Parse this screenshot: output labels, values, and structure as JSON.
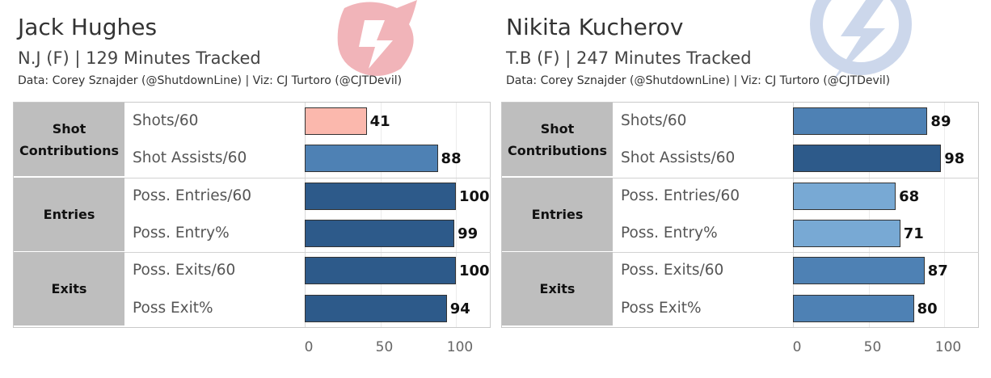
{
  "chart_data": [
    {
      "type": "bar",
      "title": "Jack Hughes",
      "subtitle": "N.J (F) | 129 Minutes Tracked",
      "credit": "Data: Corey Sznajder (@ShutdownLine) | Viz: CJ Turtoro (@CJTDevil)",
      "logo": "devils-logo",
      "groups": [
        {
          "label_lines": [
            "Shot",
            "Contributions"
          ],
          "metrics": [
            {
              "name": "Shots/60",
              "value": 41,
              "color": "#fbb8ad"
            },
            {
              "name": "Shot Assists/60",
              "value": 88,
              "color": "#4e81b4"
            }
          ]
        },
        {
          "label_lines": [
            "Entries"
          ],
          "metrics": [
            {
              "name": "Poss. Entries/60",
              "value": 100,
              "color": "#2d5a8a"
            },
            {
              "name": "Poss. Entry%",
              "value": 99,
              "color": "#2d5a8a"
            }
          ]
        },
        {
          "label_lines": [
            "Exits"
          ],
          "metrics": [
            {
              "name": "Poss. Exits/60",
              "value": 100,
              "color": "#2d5a8a"
            },
            {
              "name": "Poss Exit%",
              "value": 94,
              "color": "#2d5a8a"
            }
          ]
        }
      ],
      "xlim": [
        0,
        100
      ],
      "xticks": [
        "0",
        "50",
        "100"
      ]
    },
    {
      "type": "bar",
      "title": "Nikita Kucherov",
      "subtitle": "T.B (F) | 247 Minutes Tracked",
      "credit": "Data: Corey Sznajder (@ShutdownLine) | Viz: CJ Turtoro (@CJTDevil)",
      "logo": "lightning-logo",
      "groups": [
        {
          "label_lines": [
            "Shot",
            "Contributions"
          ],
          "metrics": [
            {
              "name": "Shots/60",
              "value": 89,
              "color": "#4e81b4"
            },
            {
              "name": "Shot Assists/60",
              "value": 98,
              "color": "#2d5a8a"
            }
          ]
        },
        {
          "label_lines": [
            "Entries"
          ],
          "metrics": [
            {
              "name": "Poss. Entries/60",
              "value": 68,
              "color": "#78a9d4"
            },
            {
              "name": "Poss. Entry%",
              "value": 71,
              "color": "#78a9d4"
            }
          ]
        },
        {
          "label_lines": [
            "Exits"
          ],
          "metrics": [
            {
              "name": "Poss. Exits/60",
              "value": 87,
              "color": "#4e81b4"
            },
            {
              "name": "Poss Exit%",
              "value": 80,
              "color": "#4e81b4"
            }
          ]
        }
      ],
      "xlim": [
        0,
        100
      ],
      "xticks": [
        "0",
        "50",
        "100"
      ]
    }
  ]
}
